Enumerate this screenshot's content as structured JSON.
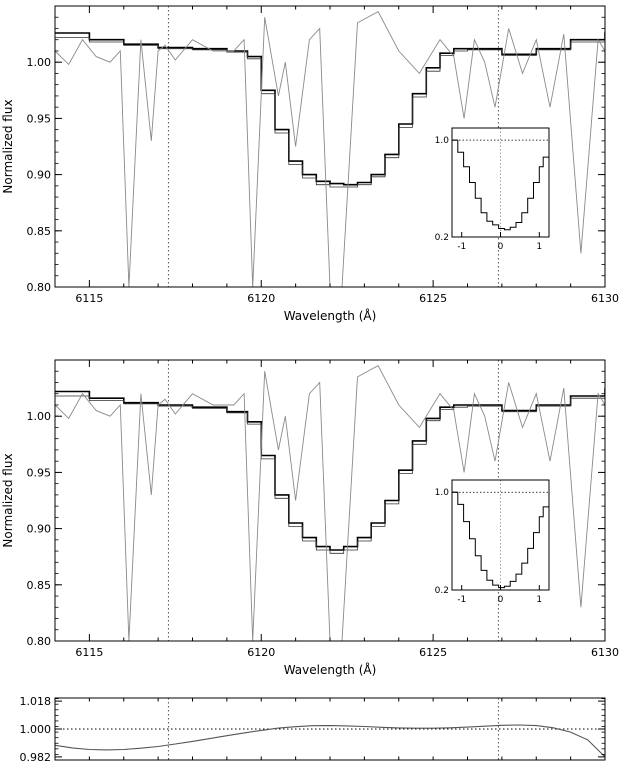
{
  "chart_data": [
    {
      "type": "line",
      "xlabel": "Wavelength (Å)",
      "ylabel": "Normalized flux",
      "xlim": [
        6114,
        6130
      ],
      "ylim": [
        0.8,
        1.05
      ],
      "xticks": [
        6115,
        6120,
        6125,
        6130
      ],
      "yticks": [
        0.8,
        0.85,
        0.9,
        0.95,
        1.0
      ],
      "ytick_labels": [
        "0.80",
        "0.85",
        "0.90",
        "0.95",
        "1.00"
      ],
      "vlines": [
        6117.3,
        6126.9
      ],
      "series": [
        {
          "style": "step-thick",
          "x": [
            6114.0,
            6115.0,
            6116.0,
            6117.0,
            6118.0,
            6119.0,
            6119.6,
            6120.0,
            6120.4,
            6120.8,
            6121.2,
            6121.6,
            6122.0,
            6122.4,
            6122.8,
            6123.2,
            6123.6,
            6124.0,
            6124.4,
            6124.8,
            6125.2,
            6125.6,
            6126.0,
            6127.0,
            6128.0,
            6129.0,
            6130.0
          ],
          "y": [
            1.026,
            1.02,
            1.016,
            1.013,
            1.012,
            1.01,
            1.005,
            0.975,
            0.94,
            0.912,
            0.9,
            0.894,
            0.892,
            0.891,
            0.893,
            0.9,
            0.918,
            0.945,
            0.972,
            0.995,
            1.008,
            1.012,
            1.012,
            1.007,
            1.012,
            1.02,
            1.027
          ]
        },
        {
          "style": "step-thin",
          "x": [
            6114.0,
            6115.0,
            6116.0,
            6117.0,
            6118.0,
            6119.0,
            6119.6,
            6120.0,
            6120.4,
            6120.8,
            6121.2,
            6121.6,
            6122.0,
            6122.4,
            6122.8,
            6123.2,
            6123.6,
            6124.0,
            6124.4,
            6124.8,
            6125.2,
            6125.6,
            6126.0,
            6127.0,
            6128.0,
            6129.0,
            6130.0
          ],
          "y": [
            1.022,
            1.018,
            1.015,
            1.012,
            1.011,
            1.009,
            1.003,
            0.972,
            0.937,
            0.909,
            0.897,
            0.891,
            0.889,
            0.889,
            0.891,
            0.898,
            0.915,
            0.942,
            0.969,
            0.992,
            1.006,
            1.01,
            1.011,
            1.006,
            1.011,
            1.018,
            1.025
          ]
        },
        {
          "style": "telluric",
          "x": [
            6114.0,
            6114.4,
            6114.8,
            6115.2,
            6115.6,
            6115.9,
            6116.15,
            6116.5,
            6116.8,
            6117.0,
            6117.2,
            6117.5,
            6118.0,
            6118.6,
            6119.2,
            6119.5,
            6119.75,
            6120.1,
            6120.5,
            6120.7,
            6121.0,
            6121.4,
            6121.7,
            6122.0,
            6122.35,
            6122.8,
            6123.4,
            6124.0,
            6124.6,
            6125.2,
            6125.6,
            6125.9,
            6126.2,
            6126.5,
            6126.8,
            6127.2,
            6127.6,
            6128.0,
            6128.4,
            6128.8,
            6129.3,
            6129.8,
            6130.0
          ],
          "y": [
            1.01,
            0.998,
            1.02,
            1.005,
            1.0,
            1.01,
            0.8,
            1.02,
            0.93,
            1.01,
            1.015,
            1.002,
            1.02,
            1.01,
            1.01,
            1.02,
            0.8,
            1.04,
            0.97,
            1.0,
            0.925,
            1.02,
            1.03,
            0.8,
            0.8,
            1.035,
            1.045,
            1.01,
            0.99,
            1.02,
            1.005,
            0.95,
            1.02,
            1.0,
            0.96,
            1.03,
            0.99,
            1.02,
            0.96,
            1.025,
            0.83,
            1.02,
            1.01
          ]
        }
      ],
      "inset": {
        "xlim": [
          -1.25,
          1.25
        ],
        "ylim": [
          0.2,
          1.1
        ],
        "xticks": [
          -1,
          0,
          1
        ],
        "xtick_labels": [
          "-1",
          "0",
          "1"
        ],
        "yticks": [
          0.2,
          1.0
        ],
        "ytick_labels": [
          "0.2",
          "1.0"
        ],
        "hline": 1.0,
        "x": [
          -1.25,
          -1.1,
          -0.95,
          -0.8,
          -0.65,
          -0.5,
          -0.35,
          -0.2,
          -0.05,
          0.1,
          0.25,
          0.4,
          0.55,
          0.7,
          0.85,
          1.0,
          1.1,
          1.25
        ],
        "y": [
          1.0,
          0.9,
          0.78,
          0.65,
          0.52,
          0.4,
          0.33,
          0.3,
          0.27,
          0.26,
          0.28,
          0.32,
          0.4,
          0.52,
          0.65,
          0.78,
          0.86,
          0.98
        ]
      }
    },
    {
      "type": "line",
      "xlabel": "Wavelength (Å)",
      "ylabel": "Normalized flux",
      "xlim": [
        6114,
        6130
      ],
      "ylim": [
        0.8,
        1.05
      ],
      "xticks": [
        6115,
        6120,
        6125,
        6130
      ],
      "yticks": [
        0.8,
        0.85,
        0.9,
        0.95,
        1.0
      ],
      "ytick_labels": [
        "0.80",
        "0.85",
        "0.90",
        "0.95",
        "1.00"
      ],
      "vlines": [
        6117.3,
        6126.9
      ],
      "series": [
        {
          "style": "step-thick",
          "x": [
            6114.0,
            6115.0,
            6116.0,
            6117.0,
            6118.0,
            6119.0,
            6119.6,
            6120.0,
            6120.4,
            6120.8,
            6121.2,
            6121.6,
            6122.0,
            6122.4,
            6122.8,
            6123.2,
            6123.6,
            6124.0,
            6124.4,
            6124.8,
            6125.2,
            6125.6,
            6126.0,
            6127.0,
            6128.0,
            6129.0,
            6130.0
          ],
          "y": [
            1.022,
            1.016,
            1.012,
            1.01,
            1.008,
            1.004,
            0.995,
            0.965,
            0.93,
            0.905,
            0.892,
            0.884,
            0.881,
            0.884,
            0.892,
            0.905,
            0.925,
            0.952,
            0.978,
            0.998,
            1.008,
            1.01,
            1.01,
            1.005,
            1.01,
            1.018,
            1.025
          ]
        },
        {
          "style": "step-thin",
          "x": [
            6114.0,
            6115.0,
            6116.0,
            6117.0,
            6118.0,
            6119.0,
            6119.6,
            6120.0,
            6120.4,
            6120.8,
            6121.2,
            6121.6,
            6122.0,
            6122.4,
            6122.8,
            6123.2,
            6123.6,
            6124.0,
            6124.4,
            6124.8,
            6125.2,
            6125.6,
            6126.0,
            6127.0,
            6128.0,
            6129.0,
            6130.0
          ],
          "y": [
            1.018,
            1.014,
            1.011,
            1.009,
            1.007,
            1.003,
            0.993,
            0.962,
            0.927,
            0.902,
            0.889,
            0.881,
            0.878,
            0.881,
            0.889,
            0.902,
            0.922,
            0.949,
            0.975,
            0.996,
            1.006,
            1.008,
            1.009,
            1.004,
            1.009,
            1.016,
            1.023
          ]
        },
        {
          "style": "telluric",
          "x": [
            6114.0,
            6114.4,
            6114.8,
            6115.2,
            6115.6,
            6115.9,
            6116.15,
            6116.5,
            6116.8,
            6117.0,
            6117.2,
            6117.5,
            6118.0,
            6118.6,
            6119.2,
            6119.5,
            6119.75,
            6120.1,
            6120.5,
            6120.7,
            6121.0,
            6121.4,
            6121.7,
            6122.0,
            6122.35,
            6122.8,
            6123.4,
            6124.0,
            6124.6,
            6125.2,
            6125.6,
            6125.9,
            6126.2,
            6126.5,
            6126.8,
            6127.2,
            6127.6,
            6128.0,
            6128.4,
            6128.8,
            6129.3,
            6129.8,
            6130.0
          ],
          "y": [
            1.01,
            0.998,
            1.02,
            1.005,
            1.0,
            1.01,
            0.8,
            1.02,
            0.93,
            1.01,
            1.015,
            1.002,
            1.02,
            1.01,
            1.01,
            1.02,
            0.8,
            1.04,
            0.97,
            1.0,
            0.925,
            1.02,
            1.03,
            0.8,
            0.8,
            1.035,
            1.045,
            1.01,
            0.99,
            1.02,
            1.005,
            0.95,
            1.02,
            1.0,
            0.96,
            1.03,
            0.99,
            1.02,
            0.96,
            1.025,
            0.83,
            1.02,
            1.01
          ]
        }
      ],
      "inset": {
        "xlim": [
          -1.25,
          1.25
        ],
        "ylim": [
          0.2,
          1.1
        ],
        "xticks": [
          -1,
          0,
          1
        ],
        "xtick_labels": [
          "-1",
          "0",
          "1"
        ],
        "yticks": [
          0.2,
          1.0
        ],
        "ytick_labels": [
          "0.2",
          "1.0"
        ],
        "hline": 1.0,
        "x": [
          -1.25,
          -1.1,
          -0.95,
          -0.8,
          -0.65,
          -0.5,
          -0.35,
          -0.2,
          -0.05,
          0.1,
          0.25,
          0.4,
          0.55,
          0.7,
          0.85,
          1.0,
          1.1,
          1.25
        ],
        "y": [
          1.0,
          0.9,
          0.76,
          0.62,
          0.48,
          0.36,
          0.28,
          0.24,
          0.22,
          0.23,
          0.27,
          0.33,
          0.42,
          0.54,
          0.67,
          0.8,
          0.88,
          0.99
        ]
      }
    },
    {
      "type": "line",
      "xlim": [
        6114,
        6130
      ],
      "ylim": [
        0.98,
        1.02
      ],
      "yticks": [
        0.982,
        1.0,
        1.018
      ],
      "ytick_labels": [
        "0.982",
        "1.000",
        "1.018"
      ],
      "hline": 1.0,
      "vlines": [
        6117.3,
        6126.9
      ],
      "series": [
        {
          "style": "smooth",
          "x": [
            6114.0,
            6114.5,
            6115.0,
            6115.5,
            6116.0,
            6116.5,
            6117.0,
            6117.5,
            6118.0,
            6118.5,
            6119.0,
            6119.5,
            6120.0,
            6120.5,
            6121.0,
            6121.5,
            6122.0,
            6122.5,
            6123.0,
            6123.5,
            6124.0,
            6124.5,
            6125.0,
            6125.5,
            6126.0,
            6126.5,
            6127.0,
            6127.5,
            6128.0,
            6128.5,
            6129.0,
            6129.5,
            6130.0
          ],
          "y": [
            0.9895,
            0.9878,
            0.9868,
            0.9865,
            0.9868,
            0.9876,
            0.9887,
            0.9903,
            0.992,
            0.9938,
            0.9957,
            0.9975,
            0.9991,
            1.0006,
            1.0015,
            1.0021,
            1.0022,
            1.002,
            1.0016,
            1.0011,
            1.0007,
            1.0005,
            1.0005,
            1.0008,
            1.0012,
            1.0018,
            1.0024,
            1.0026,
            1.0022,
            1.0008,
            0.998,
            0.993,
            0.982
          ]
        }
      ]
    }
  ]
}
